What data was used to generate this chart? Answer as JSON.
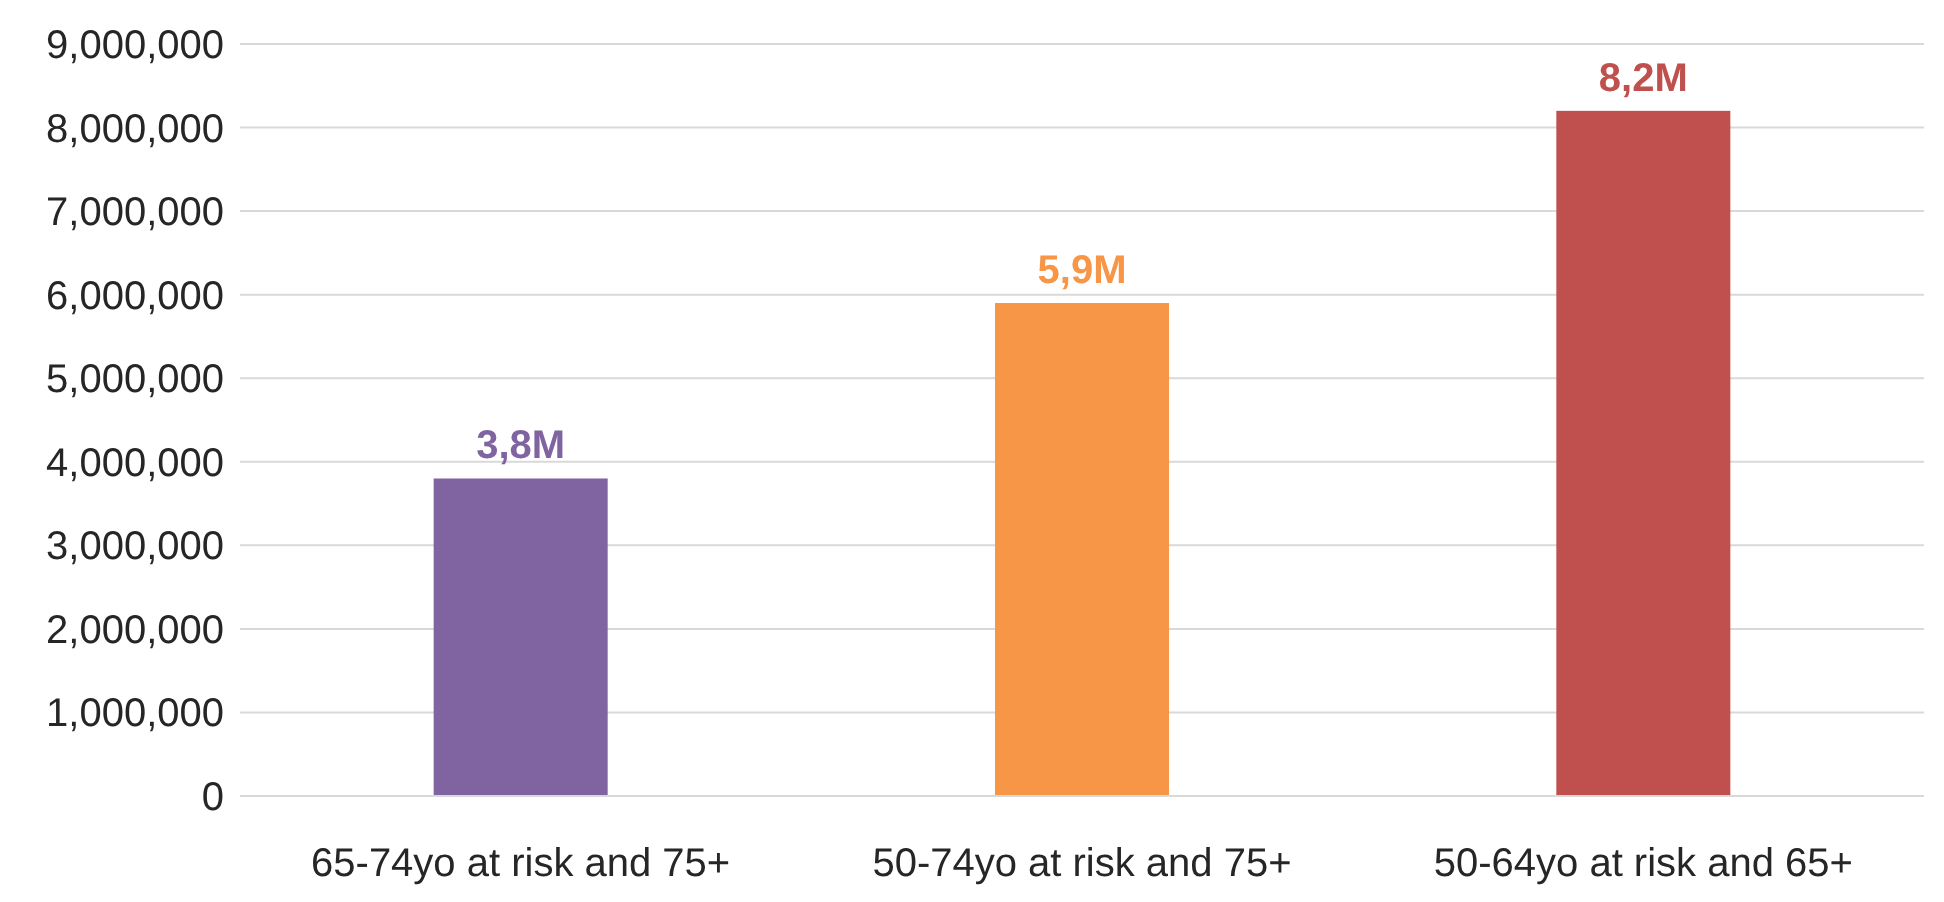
{
  "chart_data": {
    "type": "bar",
    "categories": [
      "65-74yo at risk and 75+",
      "50-74yo at risk and 75+",
      "50-64yo at risk and 65+"
    ],
    "values": [
      3800000,
      5900000,
      8200000
    ],
    "colors": [
      "#8064a2",
      "#f79646",
      "#c0504d"
    ],
    "value_labels": [
      "3,8M",
      "5,9M",
      "8,2M"
    ],
    "ylim": [
      0,
      9000000
    ],
    "yticks": [
      {
        "value": 0,
        "label": "0"
      },
      {
        "value": 1000000,
        "label": "1,000,000"
      },
      {
        "value": 2000000,
        "label": "2,000,000"
      },
      {
        "value": 3000000,
        "label": "3,000,000"
      },
      {
        "value": 4000000,
        "label": "4,000,000"
      },
      {
        "value": 5000000,
        "label": "5,000,000"
      },
      {
        "value": 6000000,
        "label": "6,000,000"
      },
      {
        "value": 7000000,
        "label": "7,000,000"
      },
      {
        "value": 8000000,
        "label": "8,000,000"
      },
      {
        "value": 9000000,
        "label": "9,000,000"
      }
    ],
    "grid": "y"
  }
}
